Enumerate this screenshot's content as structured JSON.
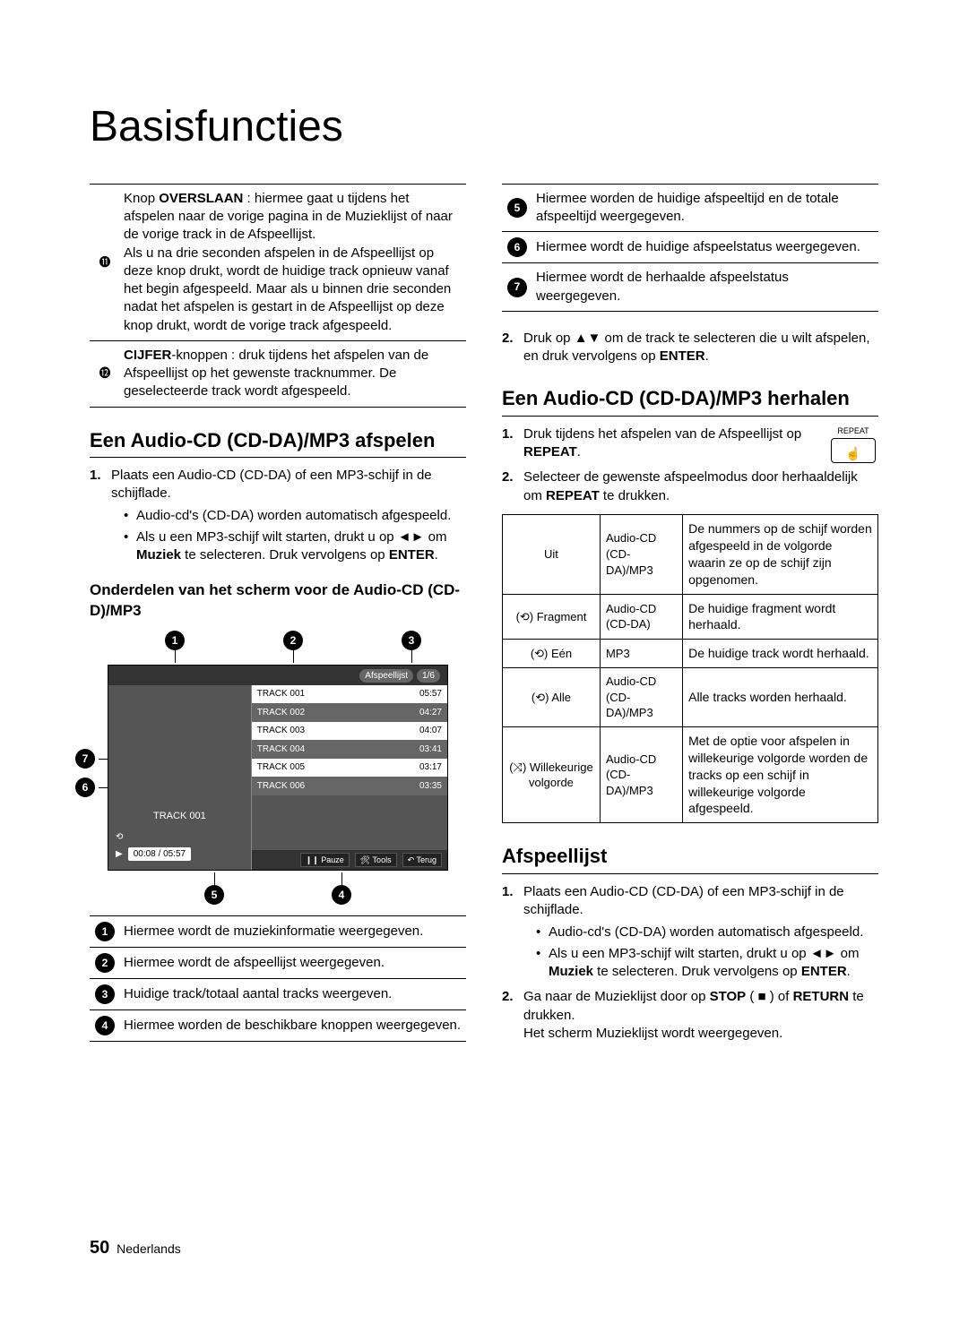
{
  "page_title": "Basisfuncties",
  "left_num_rows": [
    {
      "n": "⓫",
      "html": "Knop <b>OVERSLAAN</b> : hiermee gaat u tijdens het afspelen naar de vorige pagina in de Muzieklijst of naar de vorige track in de Afspeellijst.<br>Als u na drie seconden afspelen in de Afspeellijst op deze knop drukt, wordt de huidige track opnieuw vanaf het begin afgespeeld. Maar als u binnen drie seconden nadat het afspelen is gestart in de Afspeellijst op deze knop drukt, wordt de vorige track afgespeeld."
    },
    {
      "n": "⓬",
      "html": "<b>CIJFER</b>-knoppen : druk tijdens het afspelen van de Afspeellijst op het gewenste tracknummer. De geselecteerde track wordt afgespeeld."
    }
  ],
  "section_play_title": "Een Audio-CD (CD-DA)/MP3 afspelen",
  "play_steps": {
    "step1": "Plaats een Audio-CD (CD-DA) of een MP3-schijf in de schijflade.",
    "b1": "Audio-cd's (CD-DA) worden automatisch afgespeeld.",
    "b2_pre": "Als u een MP3-schijf wilt starten, drukt u op ◄► om ",
    "b2_bold": "Muziek",
    "b2_post": " te selecteren. Druk vervolgens op ",
    "b2_enter": "ENTER",
    "b2_dot": "."
  },
  "subsection_title": "Onderdelen van het scherm voor de Audio-CD (CD-D)/MP3",
  "player": {
    "header_chip1": "Afspeellijst",
    "header_chip2": "1/6",
    "now": "TRACK 001",
    "time": "00:08 / 05:57",
    "tracks": [
      {
        "t": "TRACK 001",
        "d": "05:57"
      },
      {
        "t": "TRACK 002",
        "d": "04:27"
      },
      {
        "t": "TRACK 003",
        "d": "04:07"
      },
      {
        "t": "TRACK 004",
        "d": "03:41"
      },
      {
        "t": "TRACK 005",
        "d": "03:17"
      },
      {
        "t": "TRACK 006",
        "d": "03:35"
      }
    ],
    "btn1": "❙❙ Pauze",
    "btn2": "🛠 Tools",
    "btn3": "↶ Terug"
  },
  "legend_rows": [
    {
      "n": "1",
      "t": "Hiermee wordt de muziekinformatie weergegeven."
    },
    {
      "n": "2",
      "t": "Hiermee wordt de afspeellijst weergegeven."
    },
    {
      "n": "3",
      "t": "Huidige track/totaal aantal tracks weergeven."
    },
    {
      "n": "4",
      "t": "Hiermee worden de beschikbare knoppen weergegeven."
    }
  ],
  "right_num_rows": [
    {
      "n": "5",
      "t": "Hiermee worden de huidige afspeeltijd en de totale afspeeltijd weergegeven."
    },
    {
      "n": "6",
      "t": "Hiermee wordt de huidige afspeelstatus weergegeven."
    },
    {
      "n": "7",
      "t": "Hiermee wordt de herhaalde afspeelstatus weergegeven."
    }
  ],
  "right_step2": {
    "pre": "Druk op ▲▼ om de track te selecteren die u wilt afspelen, en druk vervolgens op ",
    "enter": "ENTER",
    "dot": "."
  },
  "section_repeat_title": "Een Audio-CD (CD-DA)/MP3 herhalen",
  "repeat_btn_label": "REPEAT",
  "repeat_steps": {
    "s1_pre": "Druk tijdens het afspelen van de Afspeellijst op ",
    "s1_bold": "REPEAT",
    "s1_dot": ".",
    "s2_pre": "Selecteer de gewenste afspeelmodus door herhaaldelijk om ",
    "s2_bold": "REPEAT",
    "s2_post": " te drukken."
  },
  "mode_rows": [
    {
      "c1": "Uit",
      "c2": "Audio-CD (CD-DA)/MP3",
      "c3": "De nummers op de schijf worden afgespeeld in de volgorde waarin ze op de schijf zijn opgenomen."
    },
    {
      "c1": "(⟲) Fragment",
      "c2": "Audio-CD (CD-DA)",
      "c3": "De huidige fragment wordt herhaald."
    },
    {
      "c1": "(⟲) Eén",
      "c2": "MP3",
      "c3": "De huidige track wordt herhaald."
    },
    {
      "c1": "(⟲) Alle",
      "c2": "Audio-CD (CD-DA)/MP3",
      "c3": "Alle tracks worden herhaald."
    },
    {
      "c1": "(⤨) Willekeurige volgorde",
      "c2": "Audio-CD (CD-DA)/MP3",
      "c3": "Met de optie voor afspelen in willekeurige volgorde worden de tracks op een schijf in willekeurige volgorde afgespeeld."
    }
  ],
  "section_playlist_title": "Afspeellijst",
  "playlist_steps": {
    "s1": "Plaats een Audio-CD (CD-DA) of een MP3-schijf in de schijflade.",
    "b1": "Audio-cd's (CD-DA) worden automatisch afgespeeld.",
    "b2_pre": "Als u een MP3-schijf wilt starten, drukt u op ◄► om ",
    "b2_bold": "Muziek",
    "b2_post": " te selecteren. Druk vervolgens op ",
    "b2_enter": "ENTER",
    "b2_dot": ".",
    "s2_pre": "Ga naar de Muzieklijst door op ",
    "s2_stop": "STOP",
    "s2_mid": " ( ■ ) of ",
    "s2_return": "RETURN",
    "s2_post": " te drukken.",
    "s2_line2": "Het scherm Muzieklijst wordt weergegeven."
  },
  "footer_num": "50",
  "footer_lang": "Nederlands"
}
